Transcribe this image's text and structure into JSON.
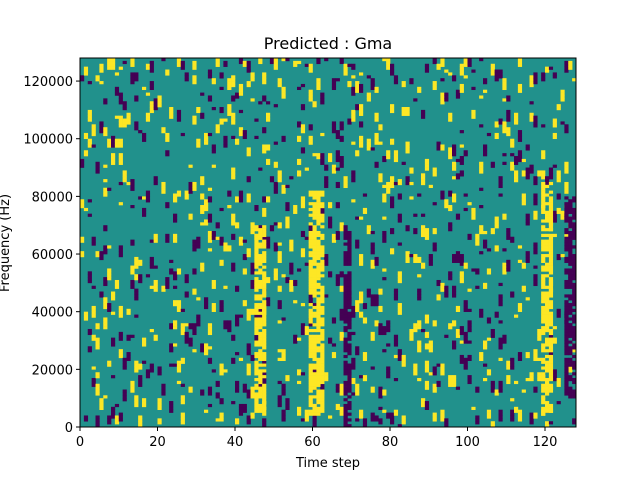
{
  "chart_data": {
    "type": "heatmap",
    "title": "Predicted : Gma",
    "xlabel": "Time step",
    "ylabel": "Frequency (Hz)",
    "xlim": [
      0,
      128
    ],
    "ylim": [
      0,
      128000
    ],
    "x_ticks": [
      0,
      20,
      40,
      60,
      80,
      100,
      120
    ],
    "y_ticks": [
      0,
      20000,
      40000,
      60000,
      80000,
      100000,
      120000
    ],
    "x_tick_labels": [
      "0",
      "20",
      "40",
      "60",
      "80",
      "100",
      "120"
    ],
    "y_tick_labels": [
      "0",
      "20000",
      "40000",
      "60000",
      "80000",
      "100000",
      "120000"
    ],
    "n_time_steps": 128,
    "n_freq_bins": 128,
    "colormap": {
      "background": "#21918c",
      "high": "#fde725",
      "low": "#440154"
    },
    "yellow_columns": [
      {
        "x_start": 45,
        "x_end": 48,
        "y_min": 4000,
        "y_max": 70000
      },
      {
        "x_start": 59,
        "x_end": 63,
        "y_min": 4000,
        "y_max": 82000
      },
      {
        "x_start": 119,
        "x_end": 122,
        "y_min": 4000,
        "y_max": 85000
      }
    ],
    "purple_columns": [
      {
        "x_start": 68,
        "x_end": 70,
        "y_min": 0,
        "y_max": 70000
      },
      {
        "x_start": 125,
        "x_end": 128,
        "y_min": 10000,
        "y_max": 80000
      }
    ],
    "scatter_density": 0.07
  }
}
